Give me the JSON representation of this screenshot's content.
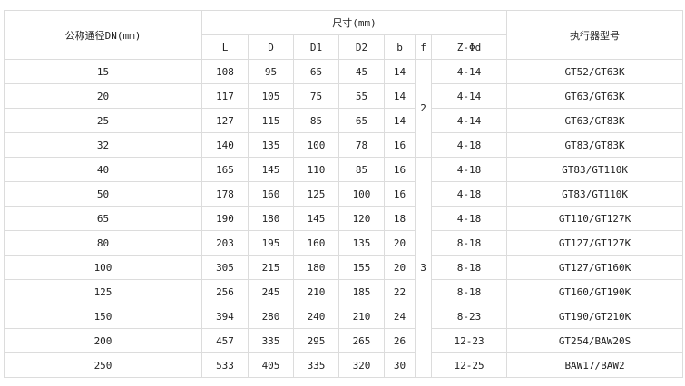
{
  "header": {
    "dn_label": "公称通径DN(mm)",
    "size_label": "尺寸(mm)",
    "actuator_label": "执行器型号",
    "columns": [
      "L",
      "D",
      "D1",
      "D2",
      "b",
      "f",
      "Z-Φd"
    ]
  },
  "f_groups": [
    "2",
    "3"
  ],
  "rows": [
    {
      "dn": "15",
      "L": "108",
      "D": "95",
      "D1": "65",
      "D2": "45",
      "b": "14",
      "z": "4-14",
      "actuator": "GT52/GT63K"
    },
    {
      "dn": "20",
      "L": "117",
      "D": "105",
      "D1": "75",
      "D2": "55",
      "b": "14",
      "z": "4-14",
      "actuator": "GT63/GT63K"
    },
    {
      "dn": "25",
      "L": "127",
      "D": "115",
      "D1": "85",
      "D2": "65",
      "b": "14",
      "z": "4-14",
      "actuator": "GT63/GT83K"
    },
    {
      "dn": "32",
      "L": "140",
      "D": "135",
      "D1": "100",
      "D2": "78",
      "b": "16",
      "z": "4-18",
      "actuator": "GT83/GT83K"
    },
    {
      "dn": "40",
      "L": "165",
      "D": "145",
      "D1": "110",
      "D2": "85",
      "b": "16",
      "z": "4-18",
      "actuator": "GT83/GT110K"
    },
    {
      "dn": "50",
      "L": "178",
      "D": "160",
      "D1": "125",
      "D2": "100",
      "b": "16",
      "z": "4-18",
      "actuator": "GT83/GT110K"
    },
    {
      "dn": "65",
      "L": "190",
      "D": "180",
      "D1": "145",
      "D2": "120",
      "b": "18",
      "z": "4-18",
      "actuator": "GT110/GT127K"
    },
    {
      "dn": "80",
      "L": "203",
      "D": "195",
      "D1": "160",
      "D2": "135",
      "b": "20",
      "z": "8-18",
      "actuator": "GT127/GT127K"
    },
    {
      "dn": "100",
      "L": "305",
      "D": "215",
      "D1": "180",
      "D2": "155",
      "b": "20",
      "z": "8-18",
      "actuator": "GT127/GT160K"
    },
    {
      "dn": "125",
      "L": "256",
      "D": "245",
      "D1": "210",
      "D2": "185",
      "b": "22",
      "z": "8-18",
      "actuator": "GT160/GT190K"
    },
    {
      "dn": "150",
      "L": "394",
      "D": "280",
      "D1": "240",
      "D2": "210",
      "b": "24",
      "z": "8-23",
      "actuator": "GT190/GT210K"
    },
    {
      "dn": "200",
      "L": "457",
      "D": "335",
      "D1": "295",
      "D2": "265",
      "b": "26",
      "z": "12-23",
      "actuator": "GT254/BAW20S"
    },
    {
      "dn": "250",
      "L": "533",
      "D": "405",
      "D1": "335",
      "D2": "320",
      "b": "30",
      "z": "12-25",
      "actuator": "BAW17/BAW2"
    }
  ]
}
